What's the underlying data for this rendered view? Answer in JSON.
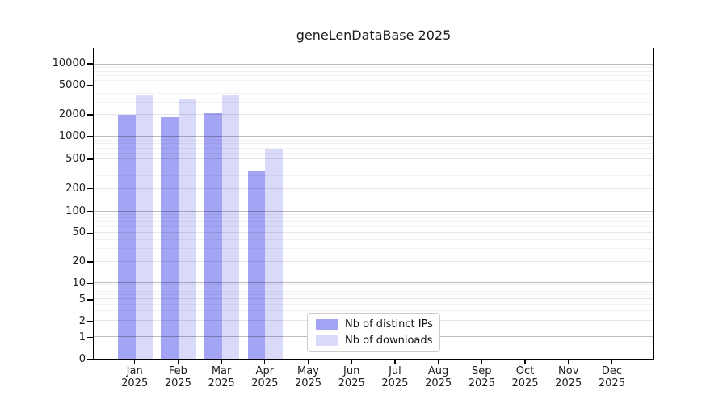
{
  "chart_data": {
    "type": "bar",
    "title": "geneLenDataBase 2025",
    "x_year": "2025",
    "categories": [
      "Jan",
      "Feb",
      "Mar",
      "Apr",
      "May",
      "Jun",
      "Jul",
      "Aug",
      "Sep",
      "Oct",
      "Nov",
      "Dec"
    ],
    "series": [
      {
        "name": "Nb of distinct IPs",
        "color": "#a4a4f4",
        "values": [
          2050,
          1870,
          2120,
          345,
          null,
          null,
          null,
          null,
          null,
          null,
          null,
          null
        ]
      },
      {
        "name": "Nb of downloads",
        "color": "#d9d9fa",
        "values": [
          3890,
          3360,
          3860,
          690,
          null,
          null,
          null,
          null,
          null,
          null,
          null,
          null
        ]
      }
    ],
    "y_ticks": [
      10000,
      5000,
      2000,
      1000,
      500,
      200,
      100,
      50,
      20,
      10,
      5,
      2,
      1,
      0
    ],
    "y_scale": "log-like with 0 baseline",
    "ylim": [
      0,
      16000
    ],
    "grid": true,
    "legend_position": "inside-bottom-center",
    "axis_color": "#000000",
    "background_color": "#ffffff"
  }
}
